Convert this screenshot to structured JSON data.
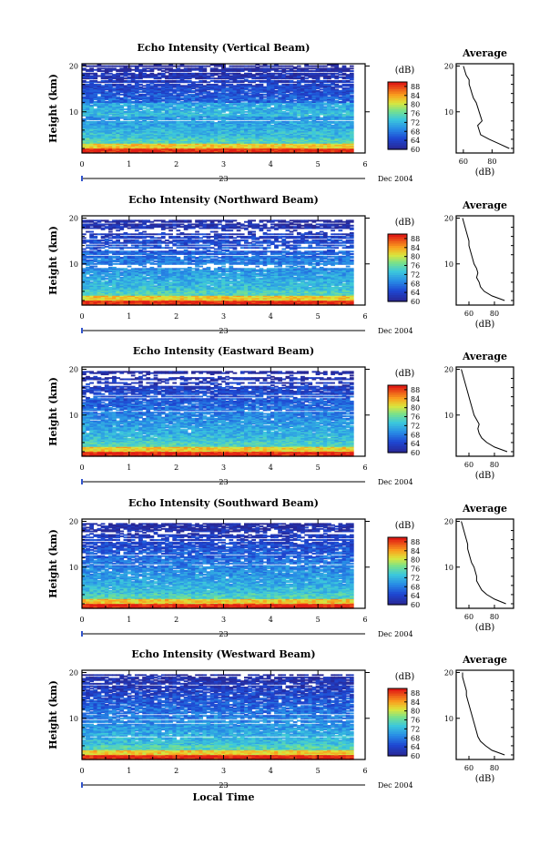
{
  "figure": {
    "x_label": "Local Time",
    "day_label": "23",
    "date_label": "Dec 2004",
    "y_label": "Height (km)",
    "unit_label": "(dB)",
    "average_title": "Average",
    "average_xlabel": "(dB)"
  },
  "chart_data": [
    {
      "type": "heatmap",
      "title": "Echo Intensity (Vertical Beam)",
      "xlabel": "",
      "ylabel": "Height (km)",
      "x_ticks": [
        0,
        1,
        2,
        3,
        4,
        5,
        6
      ],
      "xlim": [
        0,
        6
      ],
      "y_ticks": [
        10,
        20
      ],
      "ylim": [
        1,
        20.5
      ],
      "colorbar": {
        "label": "(dB)",
        "ticks": [
          60,
          64,
          68,
          72,
          76,
          80,
          84,
          88
        ],
        "range": [
          60,
          90
        ]
      },
      "profile": {
        "title": "Average",
        "xlabel": "(dB)",
        "x_ticks": [
          60,
          80
        ],
        "xlim": [
          55,
          95
        ],
        "height": [
          2,
          3,
          4,
          5,
          6,
          7,
          8,
          9,
          10,
          11,
          12,
          13,
          14,
          15,
          16,
          17,
          18,
          19,
          20
        ],
        "values": [
          92,
          85,
          78,
          72,
          71,
          70,
          73,
          72,
          71,
          70,
          69,
          67,
          66,
          65,
          64,
          64,
          62,
          61,
          60
        ]
      }
    },
    {
      "type": "heatmap",
      "title": "Echo Intensity (Northward Beam)",
      "xlabel": "",
      "ylabel": "Height (km)",
      "x_ticks": [
        0,
        1,
        2,
        3,
        4,
        5,
        6
      ],
      "xlim": [
        0,
        6
      ],
      "y_ticks": [
        10,
        20
      ],
      "ylim": [
        1,
        20.5
      ],
      "colorbar": {
        "label": "(dB)",
        "ticks": [
          60,
          64,
          68,
          72,
          76,
          80,
          84,
          88
        ],
        "range": [
          60,
          90
        ]
      },
      "profile": {
        "title": "Average",
        "xlabel": "(dB)",
        "x_ticks": [
          60,
          80
        ],
        "xlim": [
          50,
          95
        ],
        "height": [
          2,
          3,
          4,
          5,
          6,
          7,
          8,
          9,
          10,
          11,
          12,
          13,
          14,
          15,
          16,
          17,
          18,
          19,
          20
        ],
        "values": [
          88,
          78,
          72,
          69,
          68,
          66,
          67,
          66,
          64,
          63,
          62,
          61,
          60,
          60,
          59,
          58,
          57,
          56,
          55
        ]
      }
    },
    {
      "type": "heatmap",
      "title": "Echo Intensity (Eastward Beam)",
      "xlabel": "",
      "ylabel": "Height (km)",
      "x_ticks": [
        0,
        1,
        2,
        3,
        4,
        5,
        6
      ],
      "xlim": [
        0,
        6
      ],
      "y_ticks": [
        10,
        20
      ],
      "ylim": [
        1,
        20.5
      ],
      "colorbar": {
        "label": "(dB)",
        "ticks": [
          60,
          64,
          68,
          72,
          76,
          80,
          84,
          88
        ],
        "range": [
          60,
          90
        ]
      },
      "profile": {
        "title": "Average",
        "xlabel": "(dB)",
        "x_ticks": [
          60,
          80
        ],
        "xlim": [
          50,
          95
        ],
        "height": [
          2,
          3,
          4,
          5,
          6,
          7,
          8,
          9,
          10,
          11,
          12,
          13,
          14,
          15,
          16,
          17,
          18,
          19,
          20
        ],
        "values": [
          90,
          80,
          74,
          70,
          68,
          67,
          68,
          66,
          64,
          63,
          62,
          61,
          60,
          59,
          58,
          57,
          56,
          55,
          54
        ]
      }
    },
    {
      "type": "heatmap",
      "title": "Echo Intensity (Southward Beam)",
      "xlabel": "",
      "ylabel": "Height (km)",
      "x_ticks": [
        0,
        1,
        2,
        3,
        4,
        5,
        6
      ],
      "xlim": [
        0,
        6
      ],
      "y_ticks": [
        10,
        20
      ],
      "ylim": [
        1,
        20.5
      ],
      "colorbar": {
        "label": "(dB)",
        "ticks": [
          60,
          64,
          68,
          72,
          76,
          80,
          84,
          88
        ],
        "range": [
          60,
          90
        ]
      },
      "profile": {
        "title": "Average",
        "xlabel": "(dB)",
        "x_ticks": [
          60,
          80
        ],
        "xlim": [
          50,
          95
        ],
        "height": [
          2,
          3,
          4,
          5,
          6,
          7,
          8,
          9,
          10,
          11,
          12,
          13,
          14,
          15,
          16,
          17,
          18,
          19,
          20
        ],
        "values": [
          89,
          80,
          74,
          70,
          68,
          66,
          66,
          65,
          64,
          62,
          61,
          60,
          59,
          59,
          58,
          57,
          56,
          55,
          54
        ]
      }
    },
    {
      "type": "heatmap",
      "title": "Echo Intensity (Westward Beam)",
      "xlabel": "Local Time",
      "ylabel": "Height (km)",
      "x_ticks": [
        0,
        1,
        2,
        3,
        4,
        5,
        6
      ],
      "xlim": [
        0,
        6
      ],
      "y_ticks": [
        10,
        20
      ],
      "ylim": [
        1,
        20.5
      ],
      "colorbar": {
        "label": "(dB)",
        "ticks": [
          60,
          64,
          68,
          72,
          76,
          80,
          84,
          88
        ],
        "range": [
          60,
          90
        ]
      },
      "profile": {
        "title": "Average",
        "xlabel": "(dB)",
        "x_ticks": [
          60,
          80
        ],
        "xlim": [
          50,
          95
        ],
        "height": [
          2,
          3,
          4,
          5,
          6,
          7,
          8,
          9,
          10,
          11,
          12,
          13,
          14,
          15,
          16,
          17,
          18,
          19,
          20
        ],
        "values": [
          88,
          78,
          73,
          69,
          67,
          66,
          65,
          64,
          63,
          62,
          61,
          60,
          59,
          58,
          58,
          57,
          56,
          55,
          55
        ]
      }
    }
  ]
}
